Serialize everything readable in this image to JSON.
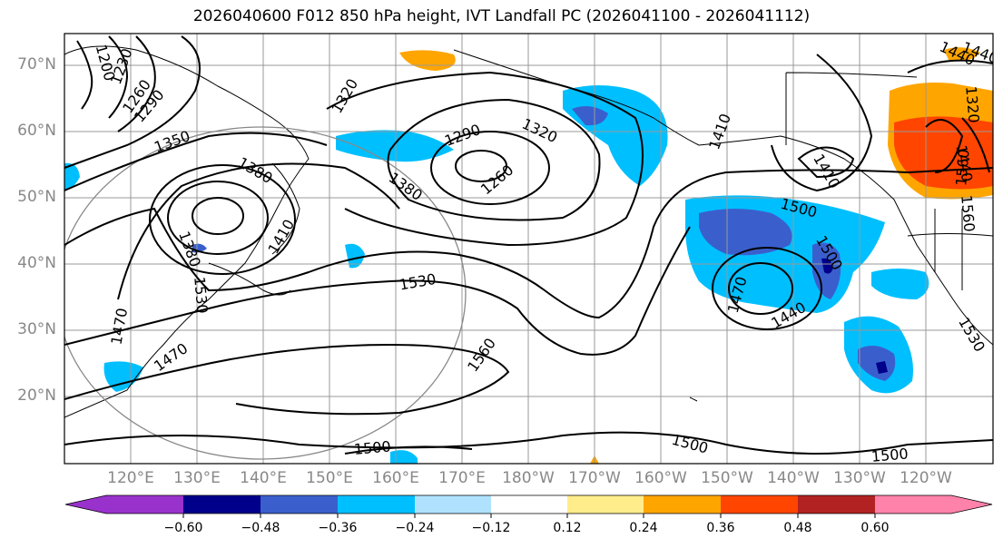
{
  "title": "2026040600 F012 850 hPa height, IVT Landfall PC (2026041100 - 2026041112)",
  "lat_labels": [
    "70°N",
    "60°N",
    "50°N",
    "40°N",
    "30°N",
    "20°N"
  ],
  "lon_labels": [
    "120°E",
    "130°E",
    "140°E",
    "150°E",
    "160°E",
    "170°E",
    "180°W",
    "170°W",
    "160°W",
    "150°W",
    "140°W",
    "130°W",
    "120°W"
  ],
  "contour_labels": [
    "1200",
    "1230",
    "1260",
    "1290",
    "1320",
    "1350",
    "1380",
    "1380",
    "1290",
    "1320",
    "1260",
    "1380",
    "1410",
    "1410",
    "1440",
    "1500",
    "1530",
    "1560",
    "1470",
    "1470",
    "1500",
    "1470",
    "1440",
    "1500",
    "1530",
    "1500",
    "1500",
    "1410",
    "1440",
    "1560",
    "1320",
    "1560",
    "1530",
    "1440"
  ],
  "colorbar": {
    "ticks": [
      "−0.60",
      "−0.48",
      "−0.36",
      "−0.24",
      "−0.12",
      "0.12",
      "0.24",
      "0.36",
      "0.48",
      "0.60"
    ],
    "colors": [
      "#9932cc",
      "#00008b",
      "#3a5fcd",
      "#00bfff",
      "#b0e2ff",
      "#ffffff",
      "#ffec8b",
      "#ffa500",
      "#ff4500",
      "#b22222",
      "#ff82ab"
    ]
  }
}
